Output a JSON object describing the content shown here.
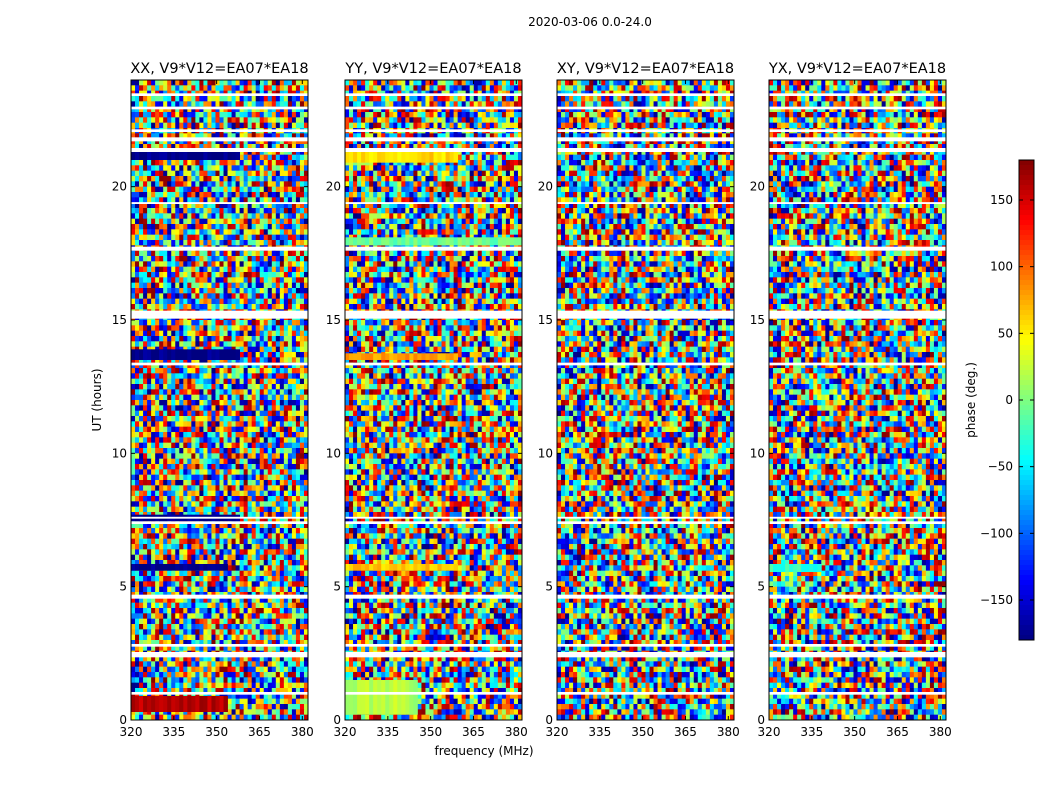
{
  "chart_data": {
    "type": "heatmap",
    "title": "2020-03-06 0.0-24.0",
    "xlabel": "frequency (MHz)",
    "ylabel": "UT (hours)",
    "xlim": [
      320,
      382
    ],
    "ylim": [
      0,
      24
    ],
    "x_ticks": [
      320,
      335,
      350,
      365,
      380
    ],
    "y_ticks": [
      0,
      5,
      10,
      15,
      20
    ],
    "colormap": "jet",
    "colorbar": {
      "label": "phase (deg.)",
      "range": [
        -180,
        180
      ],
      "ticks": [
        150,
        100,
        50,
        0,
        -50,
        -100,
        -150
      ],
      "tick_labels": [
        "150",
        "100",
        "50",
        "0",
        "−50",
        "−100",
        "−150"
      ]
    },
    "panels": [
      {
        "title": "XX, V9*V12=EA07*EA18"
      },
      {
        "title": "YY, V9*V12=EA07*EA18"
      },
      {
        "title": "XY, V9*V12=EA07*EA18"
      },
      {
        "title": "YX, V9*V12=EA07*EA18"
      }
    ]
  }
}
